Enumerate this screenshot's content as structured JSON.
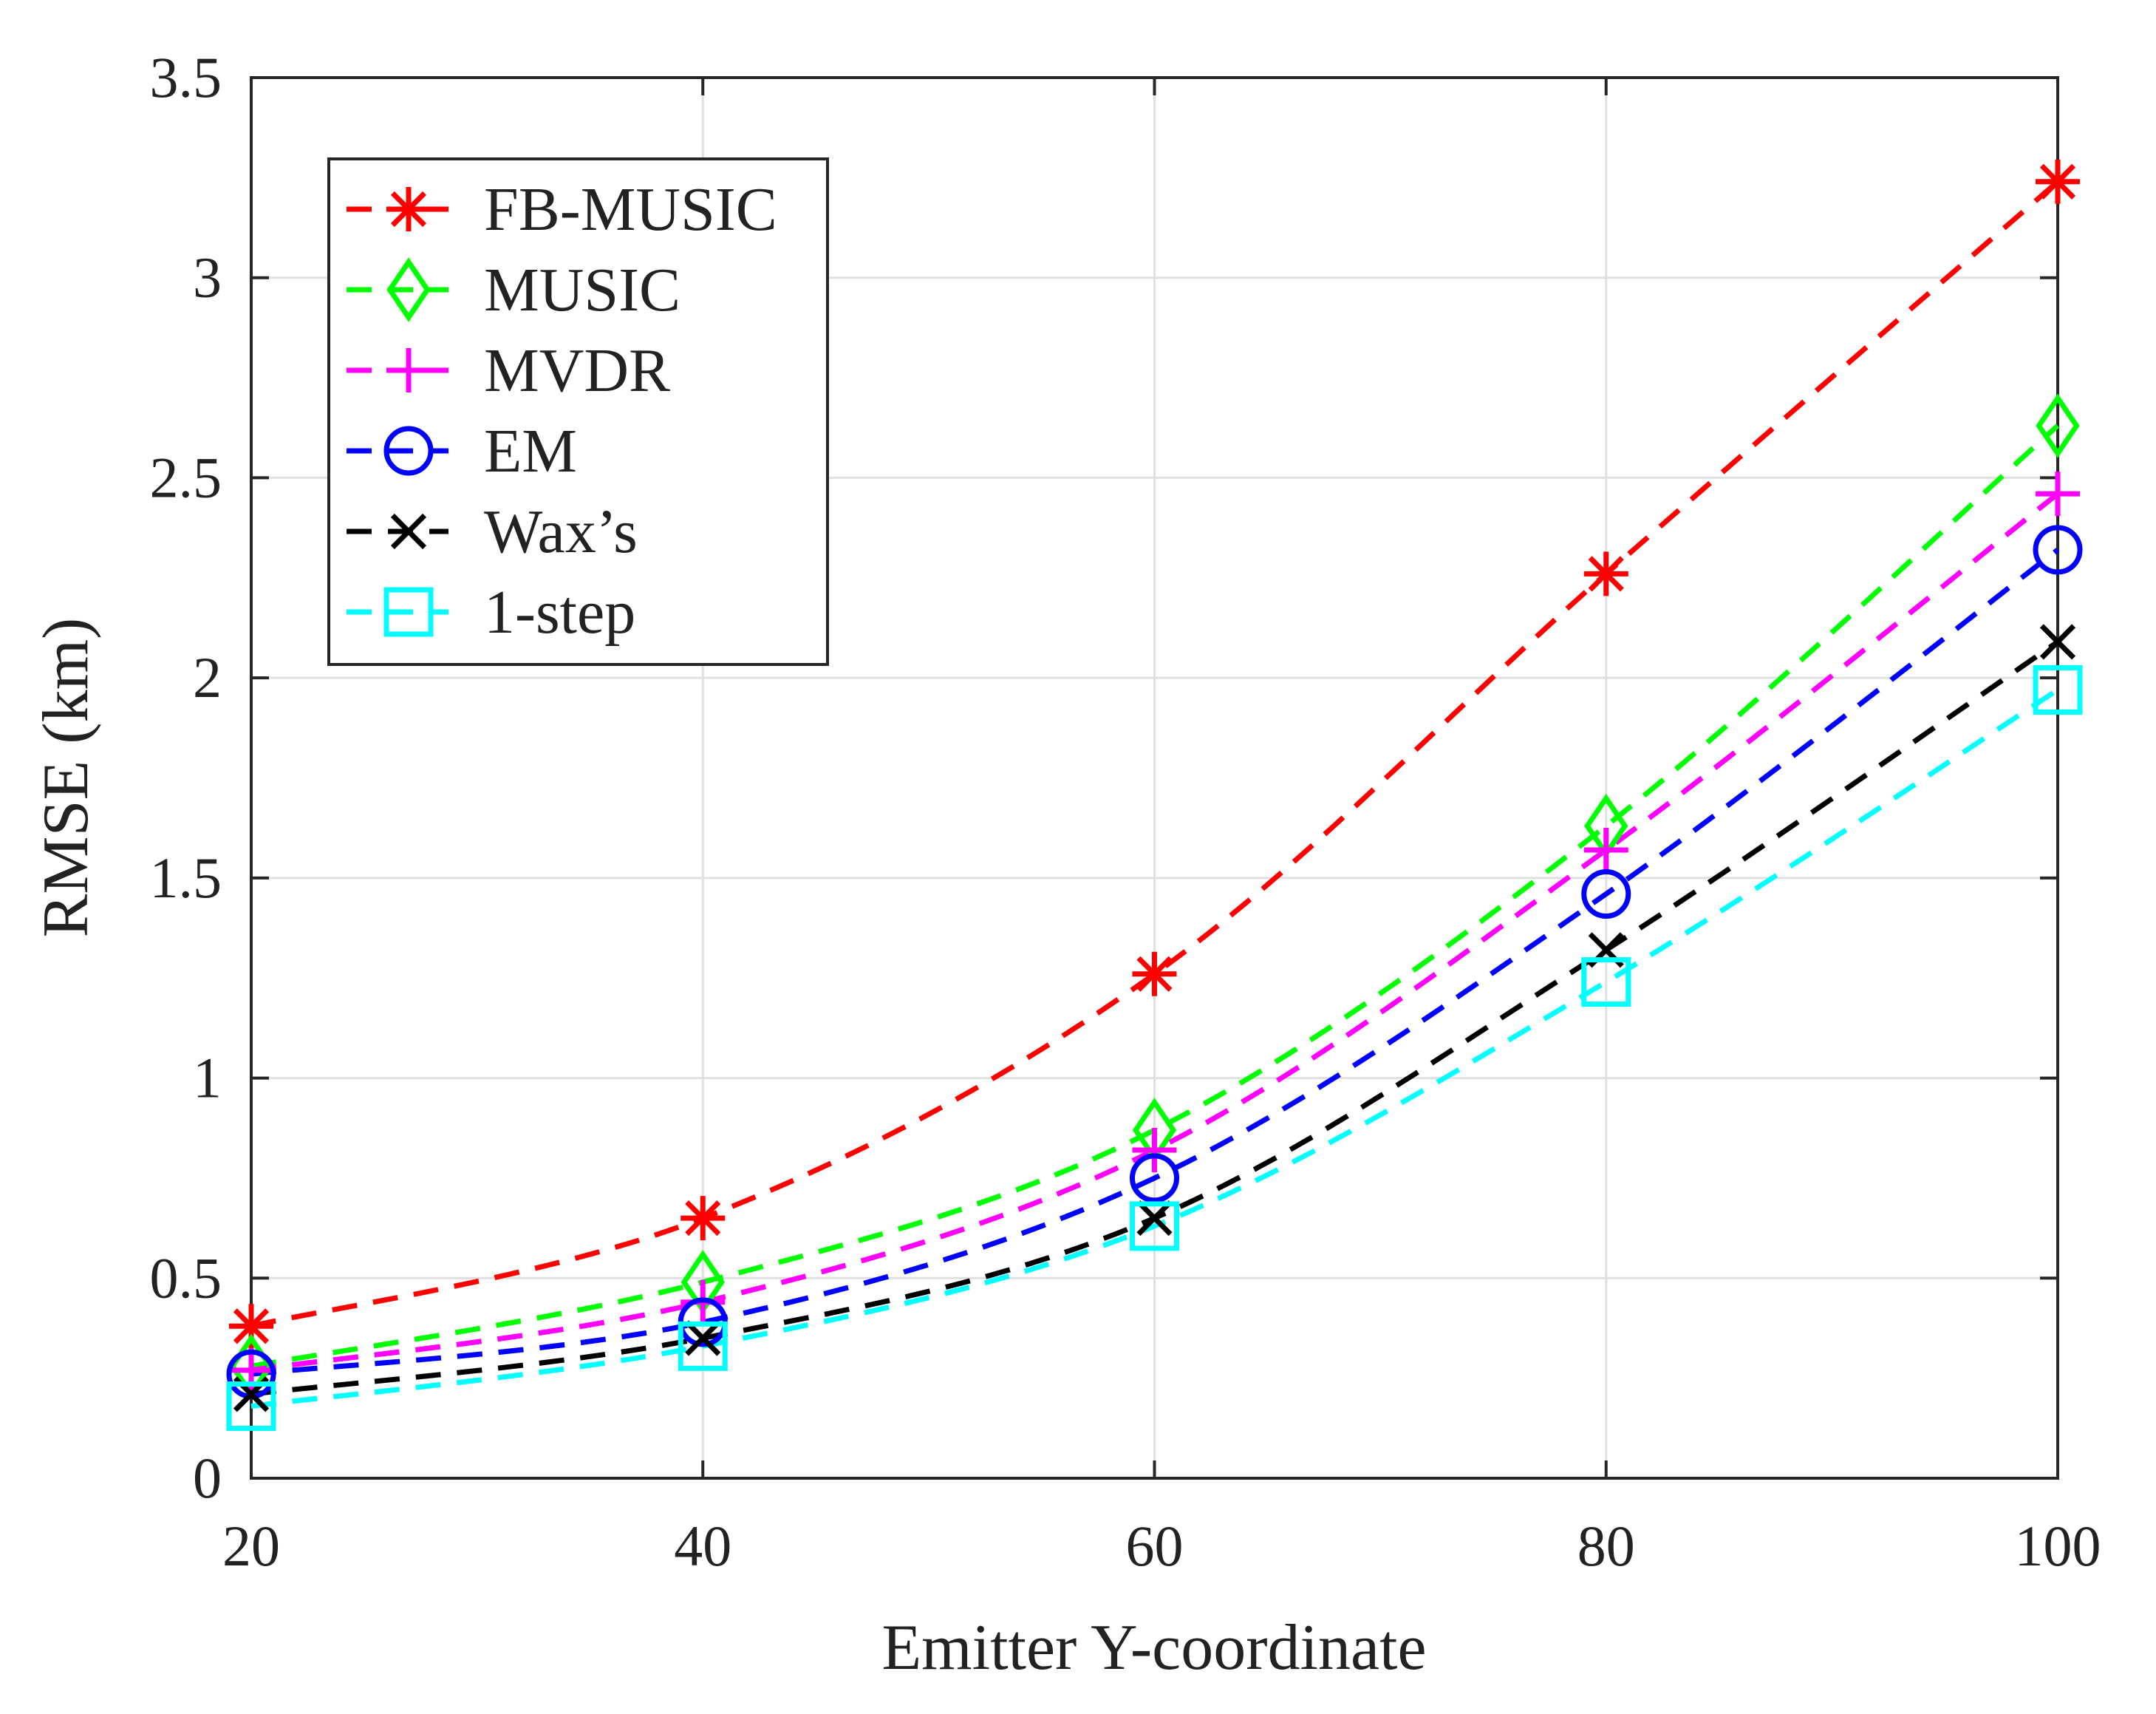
{
  "chart_data": {
    "type": "line",
    "title": "",
    "xlabel": "Emitter Y-coordinate",
    "ylabel": "RMSE (km)",
    "xlim": [
      20,
      100
    ],
    "ylim": [
      0,
      3.5
    ],
    "x": [
      20,
      40,
      60,
      80,
      100
    ],
    "xticks": [
      "20",
      "40",
      "60",
      "80",
      "100"
    ],
    "yticks": [
      "0",
      "0.5",
      "1",
      "1.5",
      "2",
      "2.5",
      "3",
      "3.5"
    ],
    "grid": true,
    "legend_position": "top-left",
    "series": [
      {
        "name": "FB-MUSIC",
        "color": "#ff0000",
        "marker": "asterisk",
        "values": [
          0.38,
          0.65,
          1.26,
          2.26,
          3.24
        ]
      },
      {
        "name": "MUSIC",
        "color": "#00ff00",
        "marker": "diamond",
        "values": [
          0.28,
          0.49,
          0.87,
          1.63,
          2.63
        ]
      },
      {
        "name": "MVDR",
        "color": "#ff00ff",
        "marker": "plus",
        "values": [
          0.27,
          0.44,
          0.82,
          1.57,
          2.46
        ]
      },
      {
        "name": "EM",
        "color": "#0000ff",
        "marker": "circle",
        "values": [
          0.26,
          0.39,
          0.75,
          1.46,
          2.32
        ]
      },
      {
        "name": "Wax’s",
        "color": "#000000",
        "marker": "x",
        "values": [
          0.21,
          0.35,
          0.65,
          1.32,
          2.09
        ]
      },
      {
        "name": "1-step",
        "color": "#00ffff",
        "marker": "square",
        "values": [
          0.18,
          0.33,
          0.63,
          1.24,
          1.97
        ]
      }
    ]
  }
}
